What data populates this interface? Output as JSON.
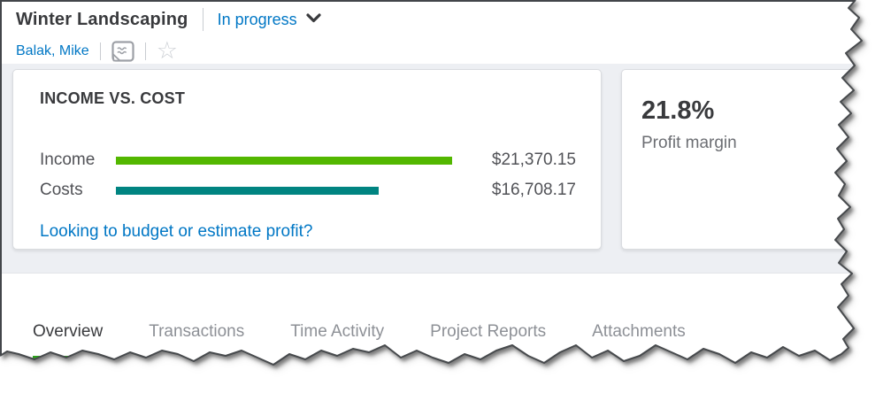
{
  "header": {
    "project_name": "Winter Landscaping",
    "status": {
      "label": "In progress",
      "icon": "chevron-down-icon"
    },
    "customer": "Balak, Mike",
    "notes_icon": "notes-icon",
    "favorite_icon": "star-icon",
    "star_glyph": "☆"
  },
  "income_cost_card": {
    "title": "INCOME VS. COST",
    "rows": [
      {
        "label": "Income",
        "value": 21370.15,
        "value_label": "$21,370.15",
        "color": "#53B700"
      },
      {
        "label": "Costs",
        "value": 16708.17,
        "value_label": "$16,708.17",
        "color": "#008481"
      }
    ],
    "link_text": "Looking to budget or estimate profit?"
  },
  "profit_card": {
    "value": "21.8%",
    "label": "Profit margin"
  },
  "tabs": [
    {
      "label": "Overview",
      "active": true
    },
    {
      "label": "Transactions",
      "active": false
    },
    {
      "label": "Time Activity",
      "active": false
    },
    {
      "label": "Project Reports",
      "active": false
    },
    {
      "label": "Attachments",
      "active": false
    }
  ],
  "colors": {
    "link_blue": "#0077C5",
    "income_green": "#53B700",
    "costs_teal": "#008481",
    "active_tab_green": "#2CA01C",
    "dark_text": "#393A3D",
    "band_gray": "#EDEFF3"
  },
  "chart_data": {
    "type": "bar",
    "orientation": "horizontal",
    "title": "INCOME VS. COST",
    "categories": [
      "Income",
      "Costs"
    ],
    "values": [
      21370.15,
      16708.17
    ],
    "value_labels": [
      "$21,370.15",
      "$16,708.17"
    ],
    "colors": [
      "#53B700",
      "#008481"
    ],
    "xlim": [
      0,
      21370.15
    ],
    "grid": false,
    "legend": false
  }
}
